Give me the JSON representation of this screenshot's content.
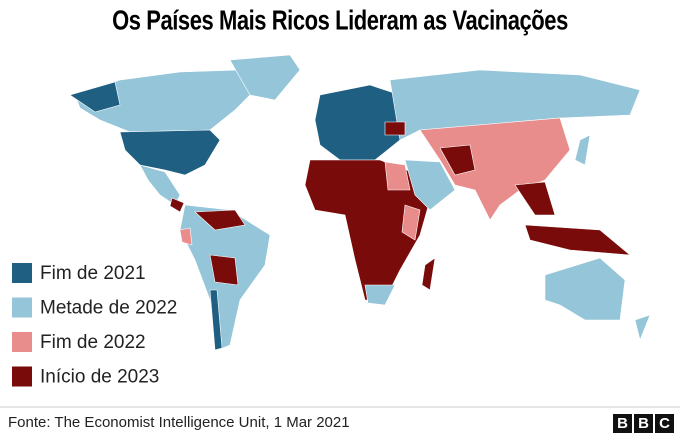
{
  "title": "Os Países Mais Ricos Lideram as Vacinações",
  "legend": [
    {
      "label": "Fim de 2021",
      "color": "#1f5f82"
    },
    {
      "label": "Metade de 2022",
      "color": "#95c5d9"
    },
    {
      "label": "Fim de 2022",
      "color": "#e98c8c"
    },
    {
      "label": "Início de 2023",
      "color": "#7a0b0b"
    }
  ],
  "source": "Fonte: The Economist Intelligence Unit, 1 Mar 2021",
  "logo": [
    "B",
    "B",
    "C"
  ]
}
